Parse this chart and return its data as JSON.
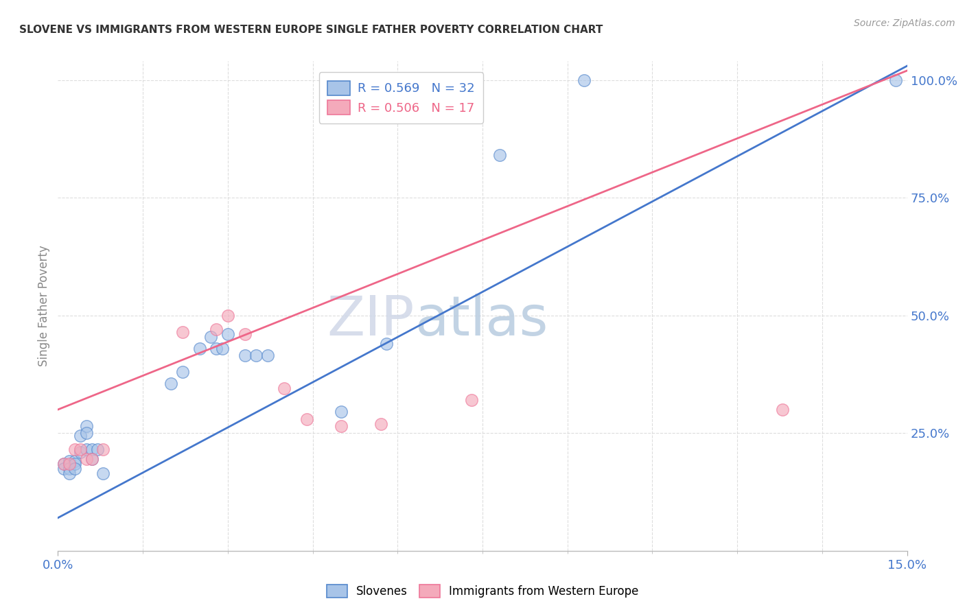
{
  "title": "SLOVENE VS IMMIGRANTS FROM WESTERN EUROPE SINGLE FATHER POVERTY CORRELATION CHART",
  "source": "Source: ZipAtlas.com",
  "ylabel": "Single Father Poverty",
  "right_yticklabels": [
    "25.0%",
    "50.0%",
    "75.0%",
    "100.0%"
  ],
  "right_yticks": [
    0.25,
    0.5,
    0.75,
    1.0
  ],
  "legend_label_blue": "Slovenes",
  "legend_label_pink": "Immigrants from Western Europe",
  "R_blue": 0.569,
  "N_blue": 32,
  "R_pink": 0.506,
  "N_pink": 17,
  "blue_fill": "#A8C4E8",
  "pink_fill": "#F4AABB",
  "blue_edge": "#5588CC",
  "pink_edge": "#EE7799",
  "blue_line_color": "#4477CC",
  "pink_line_color": "#EE6688",
  "blue_scatter_x": [
    0.001,
    0.001,
    0.002,
    0.002,
    0.002,
    0.003,
    0.003,
    0.003,
    0.004,
    0.004,
    0.005,
    0.005,
    0.005,
    0.006,
    0.006,
    0.007,
    0.008,
    0.02,
    0.022,
    0.025,
    0.027,
    0.028,
    0.029,
    0.03,
    0.033,
    0.035,
    0.037,
    0.05,
    0.058,
    0.078,
    0.093,
    0.148
  ],
  "blue_scatter_y": [
    0.185,
    0.175,
    0.19,
    0.175,
    0.165,
    0.19,
    0.185,
    0.175,
    0.245,
    0.21,
    0.265,
    0.25,
    0.215,
    0.215,
    0.195,
    0.215,
    0.165,
    0.355,
    0.38,
    0.43,
    0.455,
    0.43,
    0.43,
    0.46,
    0.415,
    0.415,
    0.415,
    0.295,
    0.44,
    0.84,
    1.0,
    1.0
  ],
  "pink_scatter_x": [
    0.001,
    0.002,
    0.003,
    0.004,
    0.005,
    0.006,
    0.008,
    0.022,
    0.028,
    0.03,
    0.033,
    0.04,
    0.044,
    0.05,
    0.057,
    0.073,
    0.128
  ],
  "pink_scatter_y": [
    0.185,
    0.185,
    0.215,
    0.215,
    0.195,
    0.195,
    0.215,
    0.465,
    0.47,
    0.5,
    0.46,
    0.345,
    0.28,
    0.265,
    0.27,
    0.32,
    0.3
  ],
  "xlim": [
    0.0,
    0.15
  ],
  "ylim": [
    0.0,
    1.04
  ],
  "blue_line_x": [
    0.0,
    0.15
  ],
  "blue_line_y": [
    0.07,
    1.03
  ],
  "pink_line_x": [
    0.0,
    0.15
  ],
  "pink_line_y": [
    0.3,
    1.02
  ],
  "watermark_zip": "ZIP",
  "watermark_atlas": "atlas",
  "background_color": "#FFFFFF",
  "grid_color": "#DDDDDD",
  "scatter_size": 160
}
